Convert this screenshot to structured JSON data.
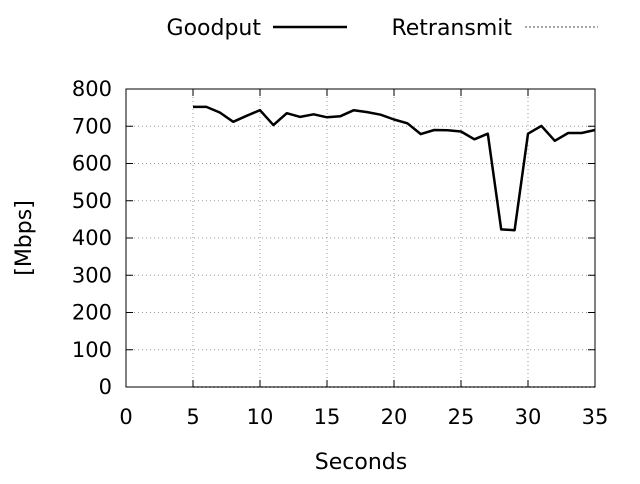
{
  "chart_data": {
    "type": "line",
    "title": "",
    "xlabel": "Seconds",
    "ylabel": "[Mbps]",
    "xlim": [
      0,
      35
    ],
    "ylim": [
      0,
      800
    ],
    "xticks": [
      0,
      5,
      10,
      15,
      20,
      25,
      30,
      35
    ],
    "yticks": [
      0,
      100,
      200,
      300,
      400,
      500,
      600,
      700,
      800
    ],
    "grid": true,
    "legend_position": "top",
    "series": [
      {
        "name": "Goodput",
        "color": "#000000",
        "style": "solid",
        "x": [
          5,
          6,
          7,
          8,
          9,
          10,
          11,
          12,
          13,
          14,
          15,
          16,
          17,
          18,
          19,
          20,
          21,
          22,
          23,
          24,
          25,
          26,
          27,
          28,
          29,
          30,
          31,
          32,
          33,
          34,
          35
        ],
        "y": [
          752,
          752,
          737,
          712,
          728,
          743,
          703,
          735,
          725,
          732,
          724,
          727,
          743,
          738,
          731,
          718,
          708,
          679,
          690,
          689,
          686,
          665,
          680,
          423,
          421,
          680,
          701,
          661,
          682,
          682,
          690
        ]
      },
      {
        "name": "Retransmit",
        "color": "#888888",
        "style": "dotted",
        "x": [
          5,
          35
        ],
        "y": [
          0,
          0
        ]
      }
    ]
  }
}
